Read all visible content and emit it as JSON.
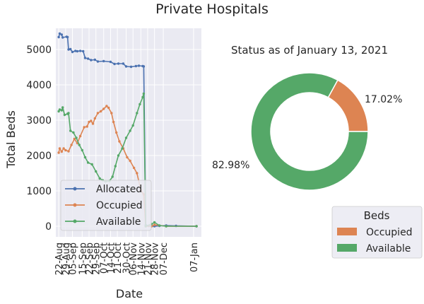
{
  "figure_title": "Private Hospitals",
  "chart_data": [
    {
      "type": "line",
      "xlabel": "Date",
      "ylabel": "Total Beds",
      "ylim": [
        -300,
        5600
      ],
      "yticks": [
        0,
        1000,
        2000,
        3000,
        4000,
        5000
      ],
      "xlim": [
        "2020-08-19",
        "2021-01-15"
      ],
      "xtick_dates": [
        "2020-08-22",
        "2020-08-29",
        "2020-09-05",
        "2020-09-15",
        "2020-09-22",
        "2020-09-29",
        "2020-10-07",
        "2020-10-14",
        "2020-10-21",
        "2020-10-30",
        "2020-11-06",
        "2020-11-14",
        "2020-11-21",
        "2020-11-28",
        "2020-12-07",
        "2021-01-07"
      ],
      "xtick_labels": [
        "22-Aug",
        "29-Aug",
        "05-Sep",
        "15-Sep",
        "22-Sep",
        "29-Sep",
        "07-Oct",
        "14-Oct",
        "21-Oct",
        "30-Oct",
        "06-Nov",
        "14-Nov",
        "21-Nov",
        "28-Nov",
        "07-Dec",
        "07-Jan"
      ],
      "grid": true,
      "legend_position": "lower-left",
      "series": [
        {
          "name": "Allocated",
          "color": "#4c72b0",
          "points": [
            [
              "2020-08-22",
              5350
            ],
            [
              "2020-08-23",
              5450
            ],
            [
              "2020-08-25",
              5420
            ],
            [
              "2020-08-26",
              5340
            ],
            [
              "2020-08-30",
              5360
            ],
            [
              "2020-08-31",
              5350
            ],
            [
              "2020-09-01",
              5000
            ],
            [
              "2020-09-03",
              5010
            ],
            [
              "2020-09-05",
              4930
            ],
            [
              "2020-09-08",
              4960
            ],
            [
              "2020-09-10",
              4950
            ],
            [
              "2020-09-13",
              4960
            ],
            [
              "2020-09-16",
              4950
            ],
            [
              "2020-09-18",
              4760
            ],
            [
              "2020-09-21",
              4740
            ],
            [
              "2020-09-24",
              4700
            ],
            [
              "2020-09-28",
              4710
            ],
            [
              "2020-10-01",
              4660
            ],
            [
              "2020-10-07",
              4670
            ],
            [
              "2020-10-14",
              4650
            ],
            [
              "2020-10-18",
              4590
            ],
            [
              "2020-10-22",
              4600
            ],
            [
              "2020-10-27",
              4600
            ],
            [
              "2020-10-30",
              4520
            ],
            [
              "2020-11-04",
              4510
            ],
            [
              "2020-11-09",
              4530
            ],
            [
              "2020-11-12",
              4540
            ],
            [
              "2020-11-16",
              4530
            ],
            [
              "2020-11-17",
              4520
            ],
            [
              "2020-11-19",
              30
            ],
            [
              "2020-11-22",
              10
            ],
            [
              "2020-11-25",
              0
            ],
            [
              "2020-11-28",
              0
            ],
            [
              "2020-12-03",
              10
            ],
            [
              "2020-12-10",
              20
            ],
            [
              "2020-12-20",
              10
            ],
            [
              "2021-01-10",
              0
            ]
          ]
        },
        {
          "name": "Occupied",
          "color": "#dd8452",
          "points": [
            [
              "2020-08-22",
              2080
            ],
            [
              "2020-08-23",
              2200
            ],
            [
              "2020-08-25",
              2110
            ],
            [
              "2020-08-27",
              2200
            ],
            [
              "2020-08-29",
              2150
            ],
            [
              "2020-09-01",
              2120
            ],
            [
              "2020-09-04",
              2300
            ],
            [
              "2020-09-07",
              2470
            ],
            [
              "2020-09-10",
              2350
            ],
            [
              "2020-09-13",
              2550
            ],
            [
              "2020-09-17",
              2800
            ],
            [
              "2020-09-20",
              2820
            ],
            [
              "2020-09-22",
              2950
            ],
            [
              "2020-09-24",
              2980
            ],
            [
              "2020-09-26",
              2900
            ],
            [
              "2020-09-28",
              3050
            ],
            [
              "2020-10-01",
              3200
            ],
            [
              "2020-10-04",
              3250
            ],
            [
              "2020-10-07",
              3320
            ],
            [
              "2020-10-10",
              3400
            ],
            [
              "2020-10-12",
              3350
            ],
            [
              "2020-10-15",
              3200
            ],
            [
              "2020-10-17",
              2950
            ],
            [
              "2020-10-20",
              2650
            ],
            [
              "2020-10-23",
              2400
            ],
            [
              "2020-10-27",
              2200
            ],
            [
              "2020-10-31",
              1950
            ],
            [
              "2020-11-03",
              1850
            ],
            [
              "2020-11-07",
              1650
            ],
            [
              "2020-11-10",
              1500
            ],
            [
              "2020-11-14",
              1020
            ],
            [
              "2020-11-17",
              900
            ],
            [
              "2020-11-19",
              0
            ],
            [
              "2020-11-25",
              0
            ],
            [
              "2020-11-28",
              40
            ],
            [
              "2020-12-10",
              0
            ],
            [
              "2021-01-10",
              0
            ]
          ]
        },
        {
          "name": "Available",
          "color": "#55a868",
          "points": [
            [
              "2020-08-22",
              3250
            ],
            [
              "2020-08-23",
              3300
            ],
            [
              "2020-08-25",
              3280
            ],
            [
              "2020-08-26",
              3360
            ],
            [
              "2020-08-28",
              3150
            ],
            [
              "2020-08-31",
              3180
            ],
            [
              "2020-09-01",
              3200
            ],
            [
              "2020-09-03",
              2700
            ],
            [
              "2020-09-06",
              2650
            ],
            [
              "2020-09-09",
              2500
            ],
            [
              "2020-09-12",
              2300
            ],
            [
              "2020-09-15",
              2150
            ],
            [
              "2020-09-18",
              1950
            ],
            [
              "2020-09-21",
              1800
            ],
            [
              "2020-09-25",
              1750
            ],
            [
              "2020-09-29",
              1550
            ],
            [
              "2020-10-03",
              1350
            ],
            [
              "2020-10-06",
              1300
            ],
            [
              "2020-10-09",
              1270
            ],
            [
              "2020-10-13",
              1280
            ],
            [
              "2020-10-16",
              1400
            ],
            [
              "2020-10-19",
              1700
            ],
            [
              "2020-10-22",
              2000
            ],
            [
              "2020-10-26",
              2200
            ],
            [
              "2020-10-30",
              2500
            ],
            [
              "2020-11-03",
              2700
            ],
            [
              "2020-11-06",
              2850
            ],
            [
              "2020-11-10",
              3200
            ],
            [
              "2020-11-13",
              3450
            ],
            [
              "2020-11-16",
              3650
            ],
            [
              "2020-11-17",
              3750
            ],
            [
              "2020-11-19",
              0
            ],
            [
              "2020-11-25",
              60
            ],
            [
              "2020-11-28",
              110
            ],
            [
              "2020-12-03",
              20
            ],
            [
              "2020-12-10",
              0
            ],
            [
              "2021-01-10",
              0
            ]
          ]
        }
      ]
    },
    {
      "type": "pie",
      "style": "donut",
      "title": "Status as of January 13, 2021",
      "slices": [
        {
          "label": "Occupied",
          "value": 17.02,
          "value_label": "17.02%",
          "color": "#dd8452"
        },
        {
          "label": "Available",
          "value": 82.98,
          "value_label": "82.98%",
          "color": "#55a868"
        }
      ],
      "legend_title": "Beds",
      "legend_position": "lower-right"
    }
  ]
}
